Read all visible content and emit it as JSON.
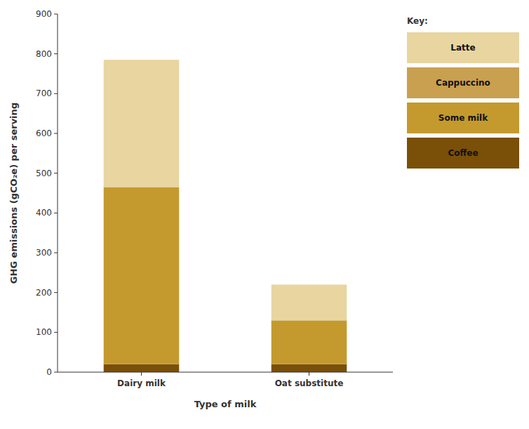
{
  "chart_data": {
    "type": "bar",
    "stacked": true,
    "categories": [
      "Dairy milk",
      "Oat substitute"
    ],
    "series": [
      {
        "name": "Coffee",
        "color": "#7A4F08",
        "values": [
          20,
          20
        ]
      },
      {
        "name": "Some milk",
        "color": "#C49A2E",
        "values": [
          445,
          110
        ]
      },
      {
        "name": "Cappuccino",
        "color": "#C8A050",
        "values": [
          null,
          null
        ]
      },
      {
        "name": "Latte",
        "color": "#E8D5A0",
        "values": [
          320,
          90
        ]
      }
    ],
    "xlabel": "Type of milk",
    "ylabel": "GHG emissions (gCO₂e) per serving",
    "legend_title": "Key:",
    "ylim": [
      0,
      900
    ],
    "yticks": [
      0,
      100,
      200,
      300,
      400,
      500,
      600,
      700,
      800,
      900
    ],
    "grid": false,
    "legend": "right"
  }
}
